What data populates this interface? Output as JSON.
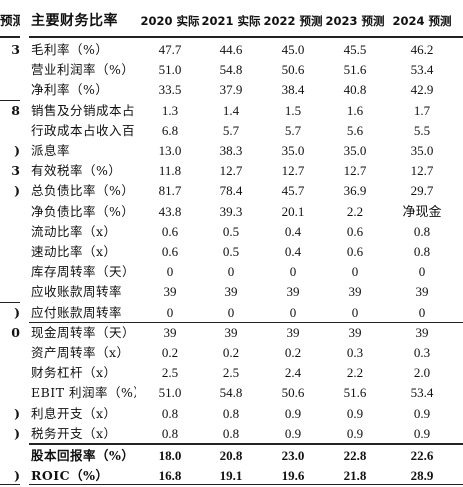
{
  "header": {
    "side": "预测",
    "label": "主要财务比率",
    "years": [
      "2020 实际",
      "2021 实际",
      "2022 预测",
      "2023 预测",
      "2024 预测"
    ]
  },
  "rows": [
    {
      "side": "3",
      "label": "毛利率（%）",
      "values": [
        "47.7",
        "44.6",
        "45.0",
        "45.5",
        "46.2"
      ]
    },
    {
      "label": "营业利润率（%）",
      "values": [
        "51.0",
        "54.8",
        "50.6",
        "51.6",
        "53.4"
      ]
    },
    {
      "label": "净利率（%）",
      "values": [
        "33.5",
        "37.9",
        "38.4",
        "40.8",
        "42.9"
      ]
    },
    {
      "side": "8",
      "label": "销售及分销成本占",
      "values": [
        "1.3",
        "1.4",
        "1.5",
        "1.6",
        "1.7"
      ]
    },
    {
      "label": "行政成本占收入百",
      "values": [
        "6.8",
        "5.7",
        "5.7",
        "5.6",
        "5.5"
      ]
    },
    {
      "side": ")",
      "label": "派息率",
      "values": [
        "13.0",
        "38.3",
        "35.0",
        "35.0",
        "35.0"
      ]
    },
    {
      "side": "3",
      "label": "有效税率（%）",
      "values": [
        "11.8",
        "12.7",
        "12.7",
        "12.7",
        "12.7"
      ]
    },
    {
      "side": ")",
      "label": "总负债比率（%）",
      "values": [
        "81.7",
        "78.4",
        "45.7",
        "36.9",
        "29.7"
      ]
    },
    {
      "label": "净负债比率（%）",
      "values": [
        "43.8",
        "39.3",
        "20.1",
        "2.2",
        "净现金"
      ]
    },
    {
      "label": "流动比率（x）",
      "values": [
        "0.6",
        "0.5",
        "0.4",
        "0.6",
        "0.8"
      ]
    },
    {
      "label": "速动比率（x）",
      "values": [
        "0.6",
        "0.5",
        "0.4",
        "0.6",
        "0.8"
      ]
    },
    {
      "label": "库存周转率（天）",
      "values": [
        "0",
        "0",
        "0",
        "0",
        "0"
      ]
    },
    {
      "label": "应收账款周转率",
      "values": [
        "39",
        "39",
        "39",
        "39",
        "39"
      ]
    },
    {
      "side": ")",
      "label": "应付账款周转率",
      "values": [
        "0",
        "0",
        "0",
        "0",
        "0"
      ]
    },
    {
      "side": "0",
      "label": "现金周转率（天）",
      "values": [
        "39",
        "39",
        "39",
        "39",
        "39"
      ]
    },
    {
      "label": "资产周转率（x）",
      "values": [
        "0.2",
        "0.2",
        "0.2",
        "0.3",
        "0.3"
      ]
    },
    {
      "label": "财务杠杆（x）",
      "values": [
        "2.5",
        "2.5",
        "2.4",
        "2.2",
        "2.0"
      ]
    },
    {
      "label": "EBIT 利润率（%）",
      "values": [
        "51.0",
        "54.8",
        "50.6",
        "51.6",
        "53.4"
      ]
    },
    {
      "side": ")",
      "label": "利息开支（x）",
      "values": [
        "0.8",
        "0.8",
        "0.9",
        "0.9",
        "0.9"
      ]
    },
    {
      "side": ")",
      "label": "税务开支（x）",
      "values": [
        "0.8",
        "0.8",
        "0.9",
        "0.9",
        "0.9"
      ]
    },
    {
      "label": "股本回报率（%）",
      "values": [
        "18.0",
        "20.8",
        "23.0",
        "22.8",
        "22.6"
      ]
    },
    {
      "side": ")",
      "label": "ROIC（%）",
      "values": [
        "16.8",
        "19.1",
        "19.6",
        "21.8",
        "28.9"
      ]
    }
  ]
}
